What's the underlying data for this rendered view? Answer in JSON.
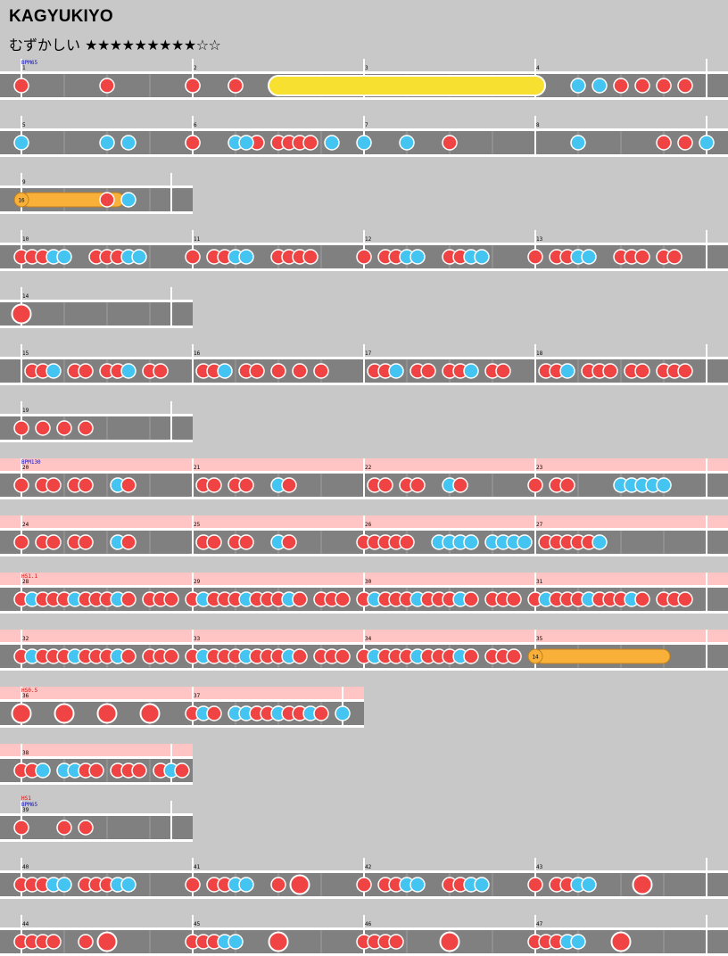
{
  "song": {
    "title": "KAGYUKIYO",
    "course": "むずかしい",
    "stars_filled": "★★★★★★★★★",
    "stars_empty": "☆☆"
  },
  "chart_rows": [
    {
      "bars": [
        {
          "n": "1",
          "sub": 8,
          "notes": "1000100010100000"
        },
        {
          "n": "2",
          "sub": 8,
          "notes": "1010700000000000"
        },
        {
          "n": "3",
          "sub": 8,
          "notes": "0000000000000000"
        },
        {
          "n": "4",
          "sub": 16,
          "notes": "8000202010101010"
        }
      ],
      "labels": [
        {
          "text": "BPM65",
          "color": "#1010c0"
        }
      ],
      "roll": {
        "type": "yellow"
      }
    },
    {
      "bars": [
        {
          "n": "5",
          "sub": 8,
          "notes": "2000220010010000"
        },
        {
          "n": "6",
          "sub": 16,
          "notes": "1000220011110200"
        },
        {
          "n": "7",
          "sub": 8,
          "notes": "2020100000000000"
        },
        {
          "n": "8",
          "sub": 8,
          "notes": "0020001120000000"
        }
      ]
    },
    {
      "bars": [
        {
          "n": "9",
          "sub": 16,
          "notes": "7000000010200000"
        }
      ],
      "roll": {
        "type": "balloon",
        "hits": "16"
      }
    },
    {
      "bars": [
        {
          "n": "10",
          "sub": 16,
          "notes": "1112200111220000"
        },
        {
          "n": "11",
          "sub": 16,
          "notes": "1011220011110000"
        },
        {
          "n": "12",
          "sub": 16,
          "notes": "1011220011220000"
        },
        {
          "n": "13",
          "sub": 16,
          "notes": "1011220011101100"
        }
      ]
    },
    {
      "bars": [
        {
          "n": "14",
          "sub": 4,
          "notes": "3000"
        }
      ]
    },
    {
      "bars": [
        {
          "n": "15",
          "sub": 16,
          "notes": "0112011011201100"
        },
        {
          "n": "16",
          "sub": 16,
          "notes": "0112011010101000"
        },
        {
          "n": "17",
          "sub": 16,
          "notes": "0112011011201100"
        },
        {
          "n": "18",
          "sub": 16,
          "notes": "0112011101101110"
        }
      ]
    },
    {
      "bars": [
        {
          "n": "19",
          "sub": 8,
          "notes": "11110000"
        }
      ]
    },
    {
      "bars": [
        {
          "n": "20",
          "sub": 16,
          "notes": "1011011002100000"
        },
        {
          "n": "21",
          "sub": 16,
          "notes": "0110110021000000"
        },
        {
          "n": "22",
          "sub": 16,
          "notes": "0110110021000000"
        },
        {
          "n": "23",
          "sub": 16,
          "notes": "1011000022222000"
        }
      ],
      "labels": [
        {
          "text": "BPM130",
          "color": "#1010c0"
        }
      ],
      "pink": true
    },
    {
      "bars": [
        {
          "n": "24",
          "sub": 16,
          "notes": "1011011002100000"
        },
        {
          "n": "25",
          "sub": 16,
          "notes": "0110110021000000"
        },
        {
          "n": "26",
          "sub": 16,
          "notes": "1111100222202222"
        },
        {
          "n": "27",
          "sub": 16,
          "notes": "0111112000000000"
        }
      ],
      "pink": true
    },
    {
      "bars": [
        {
          "n": "28",
          "sub": 16,
          "notes": "1211121112101110"
        },
        {
          "n": "29",
          "sub": 16,
          "notes": "1211121112101110"
        },
        {
          "n": "30",
          "sub": 16,
          "notes": "1211121112101110"
        },
        {
          "n": "31",
          "sub": 16,
          "notes": "1211121112101110"
        }
      ],
      "labels": [
        {
          "text": "HS1.1",
          "color": "#d01010"
        }
      ],
      "pink": true
    },
    {
      "bars": [
        {
          "n": "32",
          "sub": 16,
          "notes": "1211121112101110"
        },
        {
          "n": "33",
          "sub": 16,
          "notes": "1211121112101110"
        },
        {
          "n": "34",
          "sub": 16,
          "notes": "1211121112101110"
        },
        {
          "n": "35",
          "sub": 16,
          "notes": "7000000000000000"
        }
      ],
      "pink": true,
      "roll": {
        "type": "balloon",
        "hits": "14"
      }
    },
    {
      "bars": [
        {
          "n": "36",
          "sub": 8,
          "notes": "3030303000222100"
        },
        {
          "n": "37",
          "sub": 16,
          "notes": "1210021121121020"
        }
      ],
      "labels": [
        {
          "text": "HS0.5",
          "color": "#d01010"
        }
      ],
      "pink": true
    },
    {
      "bars": [
        {
          "n": "38",
          "sub": 16,
          "notes": "1120221101110121"
        }
      ],
      "pink": true
    },
    {
      "bars": [
        {
          "n": "39",
          "sub": 8,
          "notes": "10110000"
        }
      ],
      "labels": [
        {
          "text": "HS1",
          "color": "#d01010"
        },
        {
          "text": "BPM65",
          "color": "#1010c0"
        }
      ]
    },
    {
      "bars": [
        {
          "n": "40",
          "sub": 16,
          "notes": "1112201112200000"
        },
        {
          "n": "41",
          "sub": 16,
          "notes": "1011220010300000"
        },
        {
          "n": "42",
          "sub": 16,
          "notes": "1011220011220000"
        },
        {
          "n": "43",
          "sub": 16,
          "notes": "1011220000300000"
        }
      ]
    },
    {
      "bars": [
        {
          "n": "44",
          "sub": 16,
          "notes": "1111001030000000"
        },
        {
          "n": "45",
          "sub": 16,
          "notes": "1112200030000000"
        },
        {
          "n": "46",
          "sub": 16,
          "notes": "1111000030000000"
        },
        {
          "n": "47",
          "sub": 16,
          "notes": "1112200030000000"
        }
      ]
    }
  ]
}
